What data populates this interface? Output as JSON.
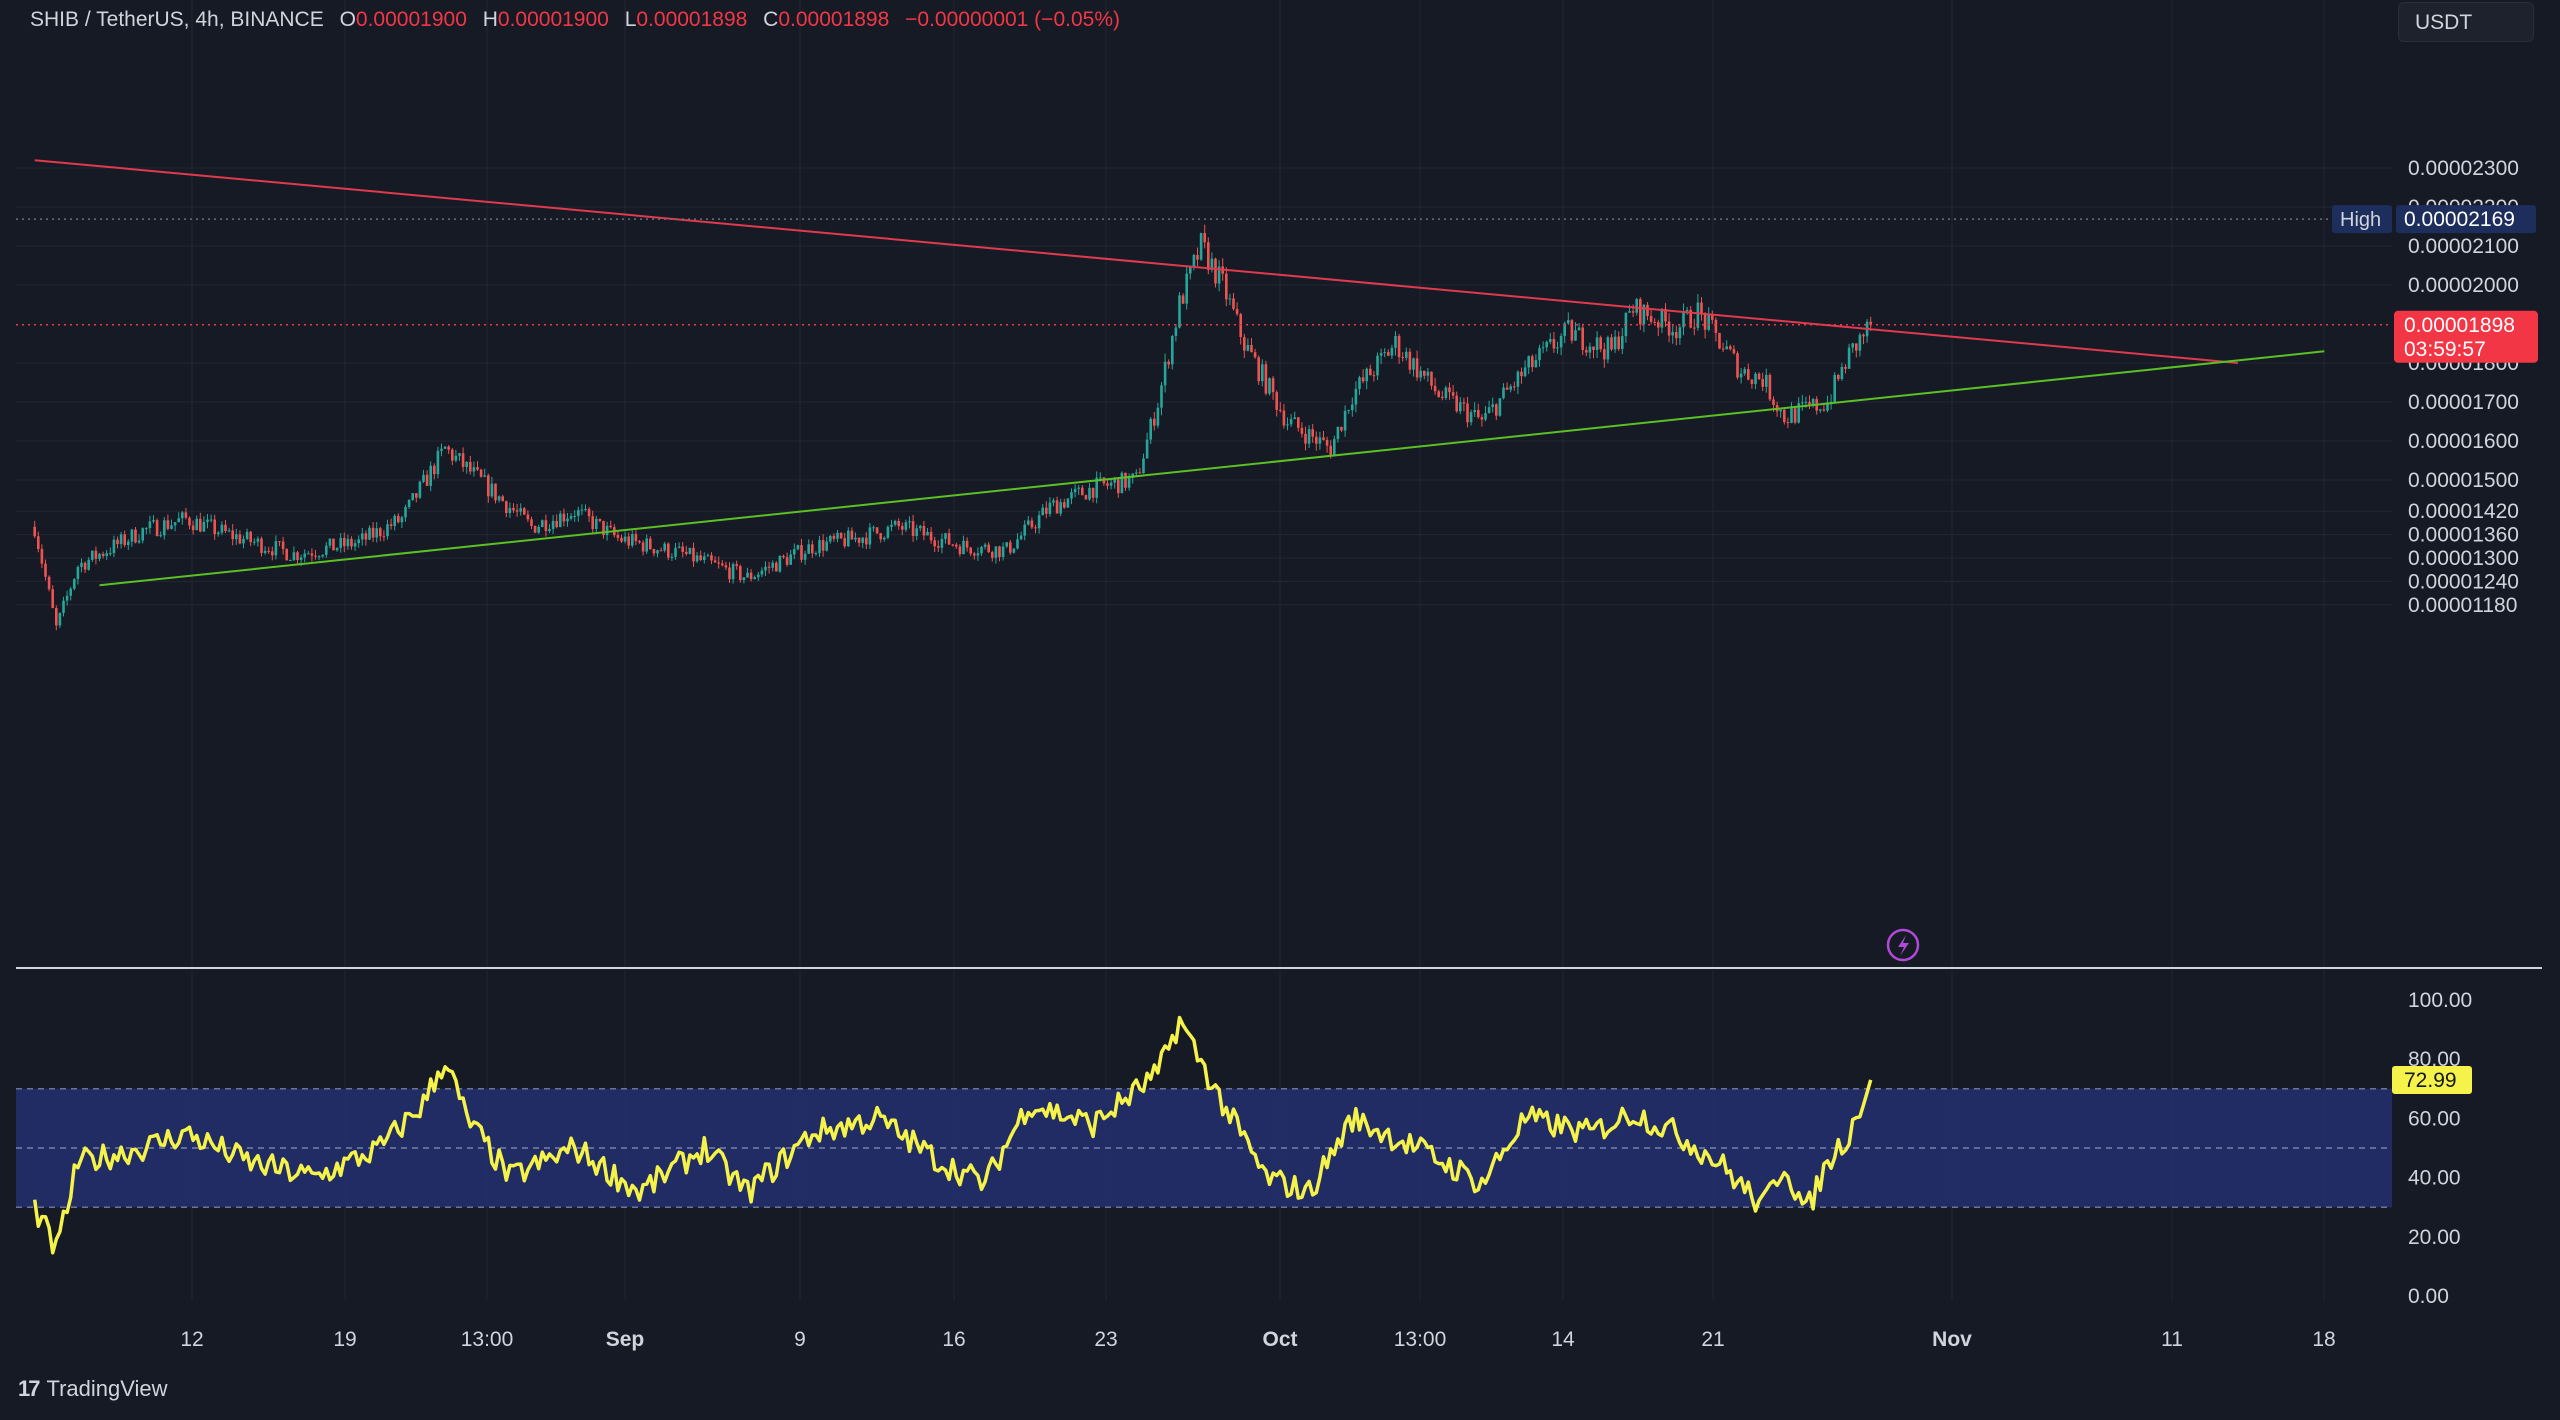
{
  "header": {
    "symbol": "SHIB / TetherUS, 4h, BINANCE",
    "o_label": "O",
    "o_value": "0.00001900",
    "h_label": "H",
    "h_value": "0.00001900",
    "l_label": "L",
    "l_value": "0.00001898",
    "c_label": "C",
    "c_value": "0.00001898",
    "change": "−0.00000001 (−0.05%)"
  },
  "unit_selector": "USDT",
  "brand": "TradingView",
  "colors": {
    "background": "#161a25",
    "up": "#26a69a",
    "down": "#ef5350",
    "resistance_line": "#e03a4e",
    "support_line": "#5ac024",
    "rsi_line": "#f5f34a",
    "rsi_band": "#22306e",
    "price_badge": "#f23645",
    "high_badge": "#1d2d5c"
  },
  "price_axis": {
    "ticks": [
      {
        "value": 2.3e-05,
        "label": "0.00002300"
      },
      {
        "value": 2.2e-05,
        "label": "0.00002200"
      },
      {
        "value": 2.1e-05,
        "label": "0.00002100"
      },
      {
        "value": 2e-05,
        "label": "0.00002000"
      },
      {
        "value": 1.8e-05,
        "label": "0.00001800"
      },
      {
        "value": 1.7e-05,
        "label": "0.00001700"
      },
      {
        "value": 1.6e-05,
        "label": "0.00001600"
      },
      {
        "value": 1.5e-05,
        "label": "0.00001500"
      },
      {
        "value": 1.42e-05,
        "label": "0.00001420"
      },
      {
        "value": 1.36e-05,
        "label": "0.00001360"
      },
      {
        "value": 1.3e-05,
        "label": "0.00001300"
      },
      {
        "value": 1.24e-05,
        "label": "0.00001240"
      },
      {
        "value": 1.18e-05,
        "label": "0.00001180"
      }
    ],
    "high_label": "High",
    "high_value": "0.00002169",
    "last_price": "0.00001898",
    "countdown": "03:59:57"
  },
  "rsi_axis": {
    "ticks": [
      "100.00",
      "80.00",
      "60.00",
      "40.00",
      "20.00",
      "0.00"
    ],
    "current": "72.99"
  },
  "time_axis": [
    {
      "label": "12",
      "bold": false
    },
    {
      "label": "19",
      "bold": false
    },
    {
      "label": "13:00",
      "bold": false
    },
    {
      "label": "Sep",
      "bold": true
    },
    {
      "label": "9",
      "bold": false
    },
    {
      "label": "16",
      "bold": false
    },
    {
      "label": "23",
      "bold": false
    },
    {
      "label": "Oct",
      "bold": true
    },
    {
      "label": "13:00",
      "bold": false
    },
    {
      "label": "14",
      "bold": false
    },
    {
      "label": "21",
      "bold": false
    },
    {
      "label": "Nov",
      "bold": true
    },
    {
      "label": "11",
      "bold": false
    },
    {
      "label": "18",
      "bold": false
    }
  ],
  "chart_data": {
    "type": "candlestick",
    "instrument": "SHIB / TetherUS",
    "interval": "4h",
    "exchange": "BINANCE",
    "price_keypoints": [
      {
        "date": "Aug 5",
        "price": 1.38e-05
      },
      {
        "date": "Aug 6",
        "price": 1.12e-05
      },
      {
        "date": "Aug 7",
        "price": 1.28e-05
      },
      {
        "date": "Aug 10",
        "price": 1.37e-05
      },
      {
        "date": "Aug 12",
        "price": 1.4e-05
      },
      {
        "date": "Aug 14",
        "price": 1.36e-05
      },
      {
        "date": "Aug 17",
        "price": 1.31e-05
      },
      {
        "date": "Aug 20",
        "price": 1.34e-05
      },
      {
        "date": "Aug 22",
        "price": 1.4e-05
      },
      {
        "date": "Aug 24",
        "price": 1.58e-05
      },
      {
        "date": "Aug 26",
        "price": 1.48e-05
      },
      {
        "date": "Aug 28",
        "price": 1.38e-05
      },
      {
        "date": "Aug 30",
        "price": 1.42e-05
      },
      {
        "date": "Sep 1",
        "price": 1.35e-05
      },
      {
        "date": "Sep 4",
        "price": 1.31e-05
      },
      {
        "date": "Sep 7",
        "price": 1.25e-05
      },
      {
        "date": "Sep 10",
        "price": 1.33e-05
      },
      {
        "date": "Sep 12",
        "price": 1.35e-05
      },
      {
        "date": "Sep 14",
        "price": 1.38e-05
      },
      {
        "date": "Sep 17",
        "price": 1.33e-05
      },
      {
        "date": "Sep 19",
        "price": 1.32e-05
      },
      {
        "date": "Sep 21",
        "price": 1.43e-05
      },
      {
        "date": "Sep 23",
        "price": 1.48e-05
      },
      {
        "date": "Sep 25",
        "price": 1.5e-05
      },
      {
        "date": "Sep 26",
        "price": 1.7e-05
      },
      {
        "date": "Sep 27",
        "price": 1.95e-05
      },
      {
        "date": "Sep 28",
        "price": 2.1e-05
      },
      {
        "date": "Sep 29",
        "price": 2e-05
      },
      {
        "date": "Sep 30",
        "price": 1.85e-05
      },
      {
        "date": "Oct 2",
        "price": 1.65e-05
      },
      {
        "date": "Oct 4",
        "price": 1.58e-05
      },
      {
        "date": "Oct 5",
        "price": 1.72e-05
      },
      {
        "date": "Oct 7",
        "price": 1.85e-05
      },
      {
        "date": "Oct 9",
        "price": 1.72e-05
      },
      {
        "date": "Oct 11",
        "price": 1.65e-05
      },
      {
        "date": "Oct 13",
        "price": 1.78e-05
      },
      {
        "date": "Oct 15",
        "price": 1.88e-05
      },
      {
        "date": "Oct 17",
        "price": 1.83e-05
      },
      {
        "date": "Oct 18",
        "price": 1.94e-05
      },
      {
        "date": "Oct 20",
        "price": 1.89e-05
      },
      {
        "date": "Oct 21",
        "price": 1.93e-05
      },
      {
        "date": "Oct 23",
        "price": 1.78e-05
      },
      {
        "date": "Oct 24",
        "price": 1.76e-05
      },
      {
        "date": "Oct 25",
        "price": 1.66e-05
      },
      {
        "date": "Oct 26",
        "price": 1.68e-05
      },
      {
        "date": "Oct 27",
        "price": 1.7e-05
      },
      {
        "date": "Oct 28",
        "price": 1.82e-05
      },
      {
        "date": "Oct 29",
        "price": 1.898e-05
      }
    ],
    "trendlines": [
      {
        "name": "resistance",
        "color": "#e03a4e",
        "from": {
          "date": "Aug 5",
          "price": 2.32e-05
        },
        "to": {
          "date": "Nov 15",
          "price": 1.8e-05
        }
      },
      {
        "name": "support",
        "color": "#5ac024",
        "from": {
          "date": "Aug 8",
          "price": 1.23e-05
        },
        "to": {
          "date": "Nov 19",
          "price": 1.83e-05
        }
      }
    ],
    "high": 2.169e-05,
    "last": 1.898e-05,
    "rsi": {
      "upper_band": 70,
      "middle": 50,
      "lower_band": 30,
      "current": 72.99,
      "keypoints": [
        {
          "date": "Aug 5",
          "value": 30
        },
        {
          "date": "Aug 6",
          "value": 15
        },
        {
          "date": "Aug 7",
          "value": 45
        },
        {
          "date": "Aug 10",
          "value": 50
        },
        {
          "date": "Aug 12",
          "value": 55
        },
        {
          "date": "Aug 15",
          "value": 45
        },
        {
          "date": "Aug 18",
          "value": 40
        },
        {
          "date": "Aug 21",
          "value": 50
        },
        {
          "date": "Aug 23",
          "value": 65
        },
        {
          "date": "Aug 24",
          "value": 80
        },
        {
          "date": "Aug 25",
          "value": 60
        },
        {
          "date": "Aug 27",
          "value": 40
        },
        {
          "date": "Aug 30",
          "value": 50
        },
        {
          "date": "Sep 2",
          "value": 35
        },
        {
          "date": "Sep 5",
          "value": 50
        },
        {
          "date": "Sep 7",
          "value": 35
        },
        {
          "date": "Sep 10",
          "value": 55
        },
        {
          "date": "Sep 13",
          "value": 60
        },
        {
          "date": "Sep 16",
          "value": 45
        },
        {
          "date": "Sep 18",
          "value": 38
        },
        {
          "date": "Sep 20",
          "value": 65
        },
        {
          "date": "Sep 23",
          "value": 58
        },
        {
          "date": "Sep 26",
          "value": 75
        },
        {
          "date": "Sep 27",
          "value": 93
        },
        {
          "date": "Sep 29",
          "value": 65
        },
        {
          "date": "Oct 1",
          "value": 40
        },
        {
          "date": "Oct 3",
          "value": 35
        },
        {
          "date": "Oct 5",
          "value": 60
        },
        {
          "date": "Oct 8",
          "value": 50
        },
        {
          "date": "Oct 11",
          "value": 38
        },
        {
          "date": "Oct 13",
          "value": 60
        },
        {
          "date": "Oct 16",
          "value": 55
        },
        {
          "date": "Oct 18",
          "value": 62
        },
        {
          "date": "Oct 20",
          "value": 55
        },
        {
          "date": "Oct 22",
          "value": 45
        },
        {
          "date": "Oct 24",
          "value": 30
        },
        {
          "date": "Oct 25",
          "value": 45
        },
        {
          "date": "Oct 26",
          "value": 28
        },
        {
          "date": "Oct 27",
          "value": 45
        },
        {
          "date": "Oct 28",
          "value": 55
        },
        {
          "date": "Oct 29",
          "value": 72.99
        }
      ]
    }
  }
}
